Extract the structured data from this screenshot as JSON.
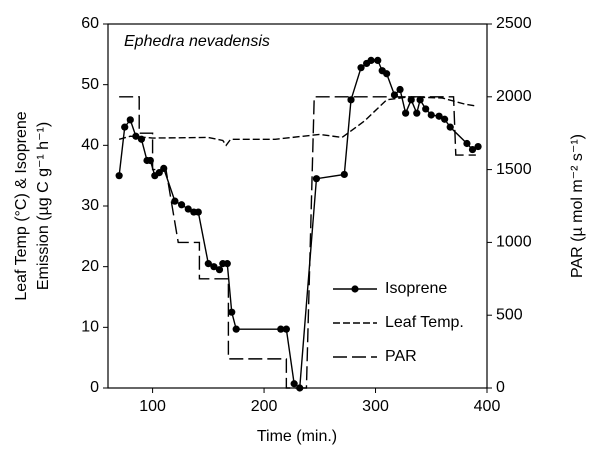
{
  "chart_data": {
    "type": "line",
    "annotation": "Ephedra nevadensis",
    "xlabel": "Time (min.)",
    "ylabel": [
      "Leaf Temp (°C) & Isoprene",
      "Emission (µg C g⁻¹ h⁻¹)"
    ],
    "y2label": "PAR (µ mol m⁻² s⁻¹)",
    "xlim": [
      60,
      400
    ],
    "xticks": [
      100,
      200,
      300,
      400
    ],
    "ylim": [
      0,
      60
    ],
    "yticks": [
      0,
      10,
      20,
      30,
      40,
      50,
      60
    ],
    "y2lim": [
      0,
      2500
    ],
    "y2ticks": [
      0,
      500,
      1000,
      1500,
      2000,
      2500
    ],
    "legend": "lower right",
    "series": [
      {
        "name": "Isoprene",
        "color": "#000000",
        "line_style": "solid",
        "marker": "circle",
        "x": [
          70,
          75,
          80,
          85,
          90,
          95,
          98,
          102,
          106,
          110,
          120,
          126,
          132,
          137,
          141,
          150,
          155,
          160,
          163,
          167,
          171,
          175,
          215,
          220,
          227,
          232,
          247,
          272,
          278,
          287,
          292,
          296,
          302,
          306,
          310,
          317,
          322,
          327,
          332,
          337,
          340,
          345,
          350,
          357,
          362,
          367,
          382,
          387,
          392
        ],
        "values": [
          35,
          43,
          44.2,
          41.5,
          41,
          37.5,
          37.5,
          35,
          35.5,
          36.2,
          30.8,
          30.2,
          29.5,
          29,
          29,
          20.5,
          20,
          19.5,
          20.5,
          20.5,
          12.5,
          9.7,
          9.7,
          9.7,
          0.7,
          0,
          34.5,
          35.2,
          47.5,
          52.8,
          53.5,
          54,
          54,
          52.3,
          51.8,
          48.3,
          49.2,
          45.3,
          47.5,
          45.3,
          47.5,
          46,
          45,
          44.8,
          44.3,
          43,
          40.3,
          39.3,
          39.8
        ]
      },
      {
        "name": "Leaf Temp.",
        "color": "#000000",
        "line_style": "dashed",
        "marker": null,
        "x": [
          70,
          80,
          100,
          150,
          163,
          166,
          170,
          210,
          250,
          270,
          290,
          310,
          330,
          360,
          380,
          390
        ],
        "values": [
          41,
          41.5,
          41.2,
          41.3,
          40.8,
          40,
          41,
          41,
          41.8,
          41.3,
          44,
          47.5,
          48,
          47.8,
          46.8,
          46.5
        ]
      },
      {
        "name": "PAR",
        "color": "#000000",
        "line_style": "long-dashed",
        "marker": null,
        "axis": "y2",
        "x": [
          70,
          88,
          88,
          100,
          100,
          112,
          123,
          142,
          142,
          168,
          168,
          220,
          220,
          238,
          245,
          370,
          372,
          390
        ],
        "values": [
          2000,
          2000,
          1750,
          1750,
          1500,
          1500,
          1000,
          1000,
          750,
          750,
          200,
          200,
          0,
          0,
          2000,
          2000,
          1600,
          1600
        ]
      }
    ]
  }
}
